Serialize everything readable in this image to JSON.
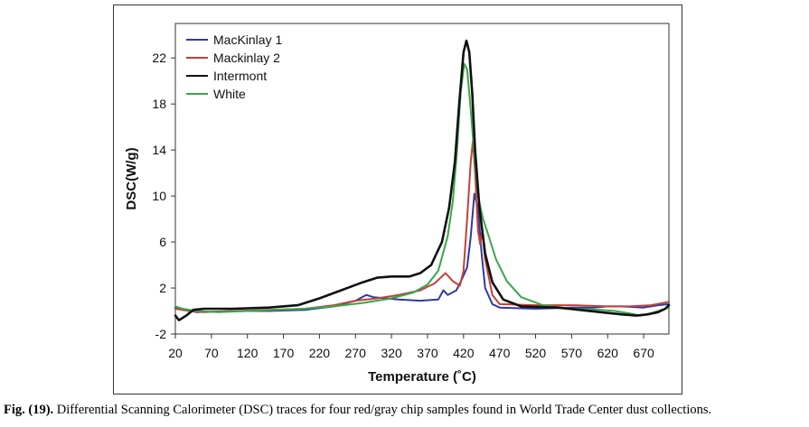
{
  "caption": {
    "label": "Fig. (19).",
    "text": " Differential Scanning Calorimeter (DSC) traces for four red/gray chip samples found in World Trade Center dust collections."
  },
  "chart_data": {
    "type": "line",
    "title": "",
    "xlabel": "Temperature (˚C)",
    "ylabel": "DSC(W/g)",
    "xlim": [
      20,
      705
    ],
    "ylim": [
      -2,
      25
    ],
    "x_ticks": [
      "20",
      "70",
      "120",
      "170",
      "220",
      "270",
      "320",
      "370",
      "420",
      "470",
      "520",
      "570",
      "620",
      "670"
    ],
    "y_ticks": [
      "-2",
      "2",
      "6",
      "10",
      "14",
      "18",
      "22"
    ],
    "legend_position": "top-left",
    "grid": false,
    "series": [
      {
        "name": "MacKinlay 1",
        "color": "#2e3a9e",
        "points": [
          [
            20,
            0.3
          ],
          [
            30,
            0.1
          ],
          [
            50,
            -0.1
          ],
          [
            100,
            0
          ],
          [
            150,
            0
          ],
          [
            200,
            0.1
          ],
          [
            240,
            0.4
          ],
          [
            270,
            0.9
          ],
          [
            285,
            1.4
          ],
          [
            295,
            1.2
          ],
          [
            330,
            1.0
          ],
          [
            360,
            0.9
          ],
          [
            385,
            1.0
          ],
          [
            392,
            1.8
          ],
          [
            398,
            1.4
          ],
          [
            410,
            1.8
          ],
          [
            418,
            2.8
          ],
          [
            425,
            3.8
          ],
          [
            430,
            6.5
          ],
          [
            435,
            10.2
          ],
          [
            440,
            9.0
          ],
          [
            445,
            5.0
          ],
          [
            450,
            2.0
          ],
          [
            460,
            0.6
          ],
          [
            470,
            0.3
          ],
          [
            520,
            0.2
          ],
          [
            570,
            0.3
          ],
          [
            600,
            0.3
          ],
          [
            620,
            0.4
          ],
          [
            640,
            0.4
          ],
          [
            670,
            0.3
          ],
          [
            690,
            0.5
          ],
          [
            705,
            0.6
          ]
        ]
      },
      {
        "name": "Mackinlay 2",
        "color": "#c2413a",
        "points": [
          [
            20,
            0.2
          ],
          [
            40,
            0
          ],
          [
            60,
            -0.1
          ],
          [
            100,
            0
          ],
          [
            150,
            0.1
          ],
          [
            200,
            0.2
          ],
          [
            240,
            0.5
          ],
          [
            270,
            0.9
          ],
          [
            300,
            1.1
          ],
          [
            330,
            1.4
          ],
          [
            360,
            1.8
          ],
          [
            380,
            2.4
          ],
          [
            395,
            3.3
          ],
          [
            405,
            2.6
          ],
          [
            415,
            2.2
          ],
          [
            420,
            3.5
          ],
          [
            425,
            8.0
          ],
          [
            430,
            13.0
          ],
          [
            433,
            14.8
          ],
          [
            436,
            12.0
          ],
          [
            440,
            7.0
          ],
          [
            443,
            5.8
          ],
          [
            446,
            7.0
          ],
          [
            450,
            4.5
          ],
          [
            460,
            1.4
          ],
          [
            470,
            0.6
          ],
          [
            520,
            0.5
          ],
          [
            570,
            0.5
          ],
          [
            620,
            0.4
          ],
          [
            650,
            0.4
          ],
          [
            680,
            0.5
          ],
          [
            705,
            0.8
          ]
        ]
      },
      {
        "name": "Intermont",
        "color": "#111111",
        "points": [
          [
            20,
            -0.4
          ],
          [
            25,
            -0.8
          ],
          [
            35,
            -0.4
          ],
          [
            45,
            0.1
          ],
          [
            60,
            0.2
          ],
          [
            100,
            0.2
          ],
          [
            150,
            0.3
          ],
          [
            190,
            0.5
          ],
          [
            220,
            1.1
          ],
          [
            250,
            1.8
          ],
          [
            280,
            2.5
          ],
          [
            300,
            2.9
          ],
          [
            320,
            3.0
          ],
          [
            345,
            3.0
          ],
          [
            360,
            3.3
          ],
          [
            375,
            4.0
          ],
          [
            390,
            6.0
          ],
          [
            400,
            9.0
          ],
          [
            408,
            13.0
          ],
          [
            414,
            18.0
          ],
          [
            420,
            22.5
          ],
          [
            424,
            23.5
          ],
          [
            428,
            22.5
          ],
          [
            432,
            19.0
          ],
          [
            436,
            14.0
          ],
          [
            442,
            9.0
          ],
          [
            450,
            5.0
          ],
          [
            460,
            2.5
          ],
          [
            475,
            1.0
          ],
          [
            500,
            0.4
          ],
          [
            550,
            0.3
          ],
          [
            580,
            0.1
          ],
          [
            610,
            -0.1
          ],
          [
            640,
            -0.3
          ],
          [
            660,
            -0.4
          ],
          [
            675,
            -0.3
          ],
          [
            690,
            -0.1
          ],
          [
            700,
            0.2
          ],
          [
            705,
            0.5
          ]
        ]
      },
      {
        "name": "White",
        "color": "#3aa64a",
        "points": [
          [
            20,
            0.4
          ],
          [
            30,
            0.2
          ],
          [
            50,
            0
          ],
          [
            80,
            -0.1
          ],
          [
            120,
            0
          ],
          [
            160,
            0.1
          ],
          [
            200,
            0.2
          ],
          [
            240,
            0.4
          ],
          [
            280,
            0.7
          ],
          [
            320,
            1.1
          ],
          [
            350,
            1.6
          ],
          [
            370,
            2.3
          ],
          [
            385,
            3.5
          ],
          [
            398,
            6.5
          ],
          [
            405,
            9.5
          ],
          [
            411,
            14.0
          ],
          [
            416,
            19.0
          ],
          [
            421,
            21.5
          ],
          [
            425,
            21.0
          ],
          [
            430,
            17.5
          ],
          [
            435,
            13.5
          ],
          [
            440,
            10.0
          ],
          [
            447,
            8.0
          ],
          [
            455,
            6.5
          ],
          [
            465,
            4.5
          ],
          [
            480,
            2.6
          ],
          [
            500,
            1.2
          ],
          [
            530,
            0.5
          ],
          [
            570,
            0.2
          ],
          [
            610,
            0.1
          ],
          [
            630,
            0
          ],
          [
            650,
            -0.2
          ],
          [
            665,
            -0.4
          ],
          [
            680,
            -0.2
          ],
          [
            695,
            0.1
          ],
          [
            705,
            0.3
          ]
        ]
      }
    ]
  }
}
